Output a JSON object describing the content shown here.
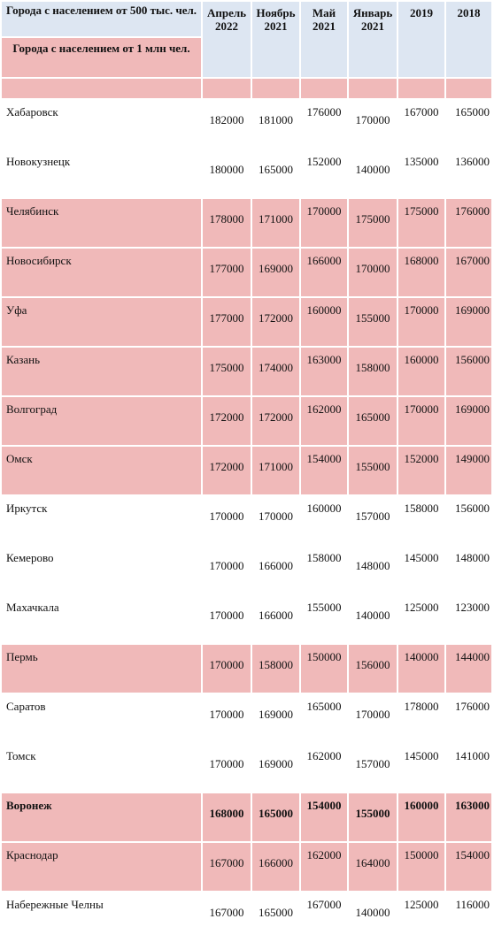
{
  "header": {
    "group_main": "Города с населением от 500 тыс. чел.",
    "group_sub": "Города с населением от 1 млн чел.",
    "columns": [
      "Апрель 2022",
      "Ноябрь 2021",
      "Май 2021",
      "Январь 2021",
      "2019",
      "2018"
    ]
  },
  "colors": {
    "header_bg": "#dde6f2",
    "million_bg": "#f0b9b9",
    "row_bg": "#ffffff"
  },
  "rows": [
    {
      "city": "Хабаровск",
      "million": false,
      "bold": false,
      "values": [
        "182000",
        "181000",
        "176000",
        "170000",
        "167000",
        "165000"
      ]
    },
    {
      "city": "Новокузнецк",
      "million": false,
      "bold": false,
      "values": [
        "180000",
        "165000",
        "152000",
        "140000",
        "135000",
        "136000"
      ]
    },
    {
      "city": "Челябинск",
      "million": true,
      "bold": false,
      "values": [
        "178000",
        "171000",
        "170000",
        "175000",
        "175000",
        "176000"
      ]
    },
    {
      "city": "Новосибирск",
      "million": true,
      "bold": false,
      "values": [
        "177000",
        "169000",
        "166000",
        "170000",
        "168000",
        "167000"
      ]
    },
    {
      "city": "Уфа",
      "million": true,
      "bold": false,
      "values": [
        "177000",
        "172000",
        "160000",
        "155000",
        "170000",
        "169000"
      ]
    },
    {
      "city": "Казань",
      "million": true,
      "bold": false,
      "values": [
        "175000",
        "174000",
        "163000",
        "158000",
        "160000",
        "156000"
      ]
    },
    {
      "city": "Волгоград",
      "million": true,
      "bold": false,
      "values": [
        "172000",
        "172000",
        "162000",
        "165000",
        "170000",
        "169000"
      ]
    },
    {
      "city": "Омск",
      "million": true,
      "bold": false,
      "values": [
        "172000",
        "171000",
        "154000",
        "155000",
        "152000",
        "149000"
      ]
    },
    {
      "city": "Иркутск",
      "million": false,
      "bold": false,
      "values": [
        "170000",
        "170000",
        "160000",
        "157000",
        "158000",
        "156000"
      ]
    },
    {
      "city": "Кемерово",
      "million": false,
      "bold": false,
      "values": [
        "170000",
        "166000",
        "158000",
        "148000",
        "145000",
        "148000"
      ]
    },
    {
      "city": "Махачкала",
      "million": false,
      "bold": false,
      "values": [
        "170000",
        "166000",
        "155000",
        "140000",
        "125000",
        "123000"
      ]
    },
    {
      "city": "Пермь",
      "million": true,
      "bold": false,
      "values": [
        "170000",
        "158000",
        "150000",
        "156000",
        "140000",
        "144000"
      ]
    },
    {
      "city": "Саратов",
      "million": false,
      "bold": false,
      "values": [
        "170000",
        "169000",
        "165000",
        "170000",
        "178000",
        "176000"
      ]
    },
    {
      "city": "Томск",
      "million": false,
      "bold": false,
      "values": [
        "170000",
        "169000",
        "162000",
        "157000",
        "145000",
        "141000"
      ]
    },
    {
      "city": "Воронеж",
      "million": true,
      "bold": true,
      "values": [
        "168000",
        "165000",
        "154000",
        "155000",
        "160000",
        "163000"
      ]
    },
    {
      "city": "Краснодар",
      "million": true,
      "bold": false,
      "values": [
        "167000",
        "166000",
        "162000",
        "164000",
        "150000",
        "154000"
      ]
    },
    {
      "city": "Набережные Челны",
      "million": false,
      "bold": false,
      "values": [
        "167000",
        "165000",
        "167000",
        "140000",
        "125000",
        "116000"
      ]
    }
  ]
}
